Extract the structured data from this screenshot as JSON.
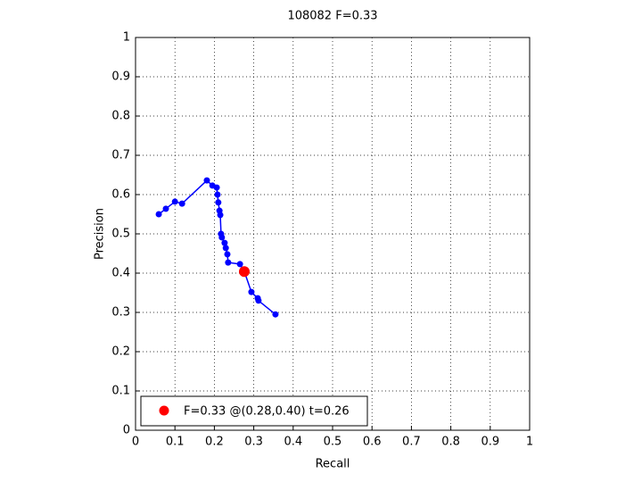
{
  "chart_data": {
    "type": "line",
    "title": "108082 F=0.33",
    "x_label": "Recall",
    "y_label": "Precision",
    "xlim": [
      0,
      1
    ],
    "ylim": [
      0,
      1
    ],
    "xticks": [
      0,
      0.1,
      0.2,
      0.3,
      0.4,
      0.5,
      0.6,
      0.7,
      0.8,
      0.9,
      1
    ],
    "yticks": [
      0,
      0.1,
      0.2,
      0.3,
      0.4,
      0.5,
      0.6,
      0.7,
      0.8,
      0.9,
      1
    ],
    "grid": true,
    "legend": "lower left",
    "series": [
      {
        "color": "#0000ff",
        "x": [
          0.059,
          0.077,
          0.1,
          0.118,
          0.181,
          0.195,
          0.206,
          0.208,
          0.21,
          0.213,
          0.215,
          0.217,
          0.219,
          0.226,
          0.229,
          0.233,
          0.235,
          0.265,
          0.276,
          0.294,
          0.31,
          0.312,
          0.355
        ],
        "values": [
          0.55,
          0.564,
          0.582,
          0.577,
          0.636,
          0.623,
          0.618,
          0.6,
          0.58,
          0.559,
          0.548,
          0.5,
          0.491,
          0.477,
          0.464,
          0.448,
          0.427,
          0.423,
          0.404,
          0.352,
          0.336,
          0.33,
          0.295
        ]
      },
      {
        "name": "F=0.33 @(0.28,0.40) t=0.26",
        "color": "#ff0000",
        "x": [
          0.276
        ],
        "values": [
          0.404
        ]
      }
    ]
  }
}
